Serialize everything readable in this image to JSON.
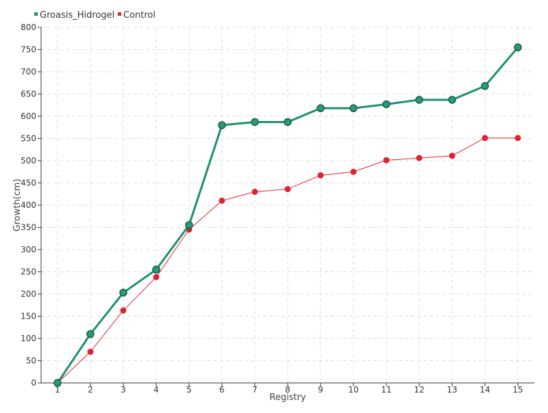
{
  "chart_data": {
    "type": "line",
    "xlabel": "Registry",
    "ylabel": "Growth(cm)",
    "categories": [
      "1",
      "2",
      "3",
      "4",
      "5",
      "6",
      "7",
      "8",
      "9",
      "10",
      "11",
      "12",
      "13",
      "14",
      "15"
    ],
    "ylim": [
      0,
      800
    ],
    "yticks": [
      0,
      50,
      100,
      150,
      200,
      250,
      300,
      350,
      400,
      450,
      500,
      550,
      600,
      650,
      700,
      750,
      800
    ],
    "grid": true,
    "legend_position": "top-left",
    "series": [
      {
        "name": "Groasis_Hidrogel",
        "color": "#1b8f6e",
        "values": [
          0,
          110,
          203,
          255,
          355,
          580,
          587,
          587,
          618,
          618,
          627,
          637,
          637,
          668,
          755
        ]
      },
      {
        "name": "Control",
        "color": "#e0212e",
        "values": [
          0,
          70,
          163,
          238,
          345,
          410,
          430,
          436,
          467,
          475,
          501,
          506,
          511,
          551,
          551
        ]
      }
    ]
  }
}
